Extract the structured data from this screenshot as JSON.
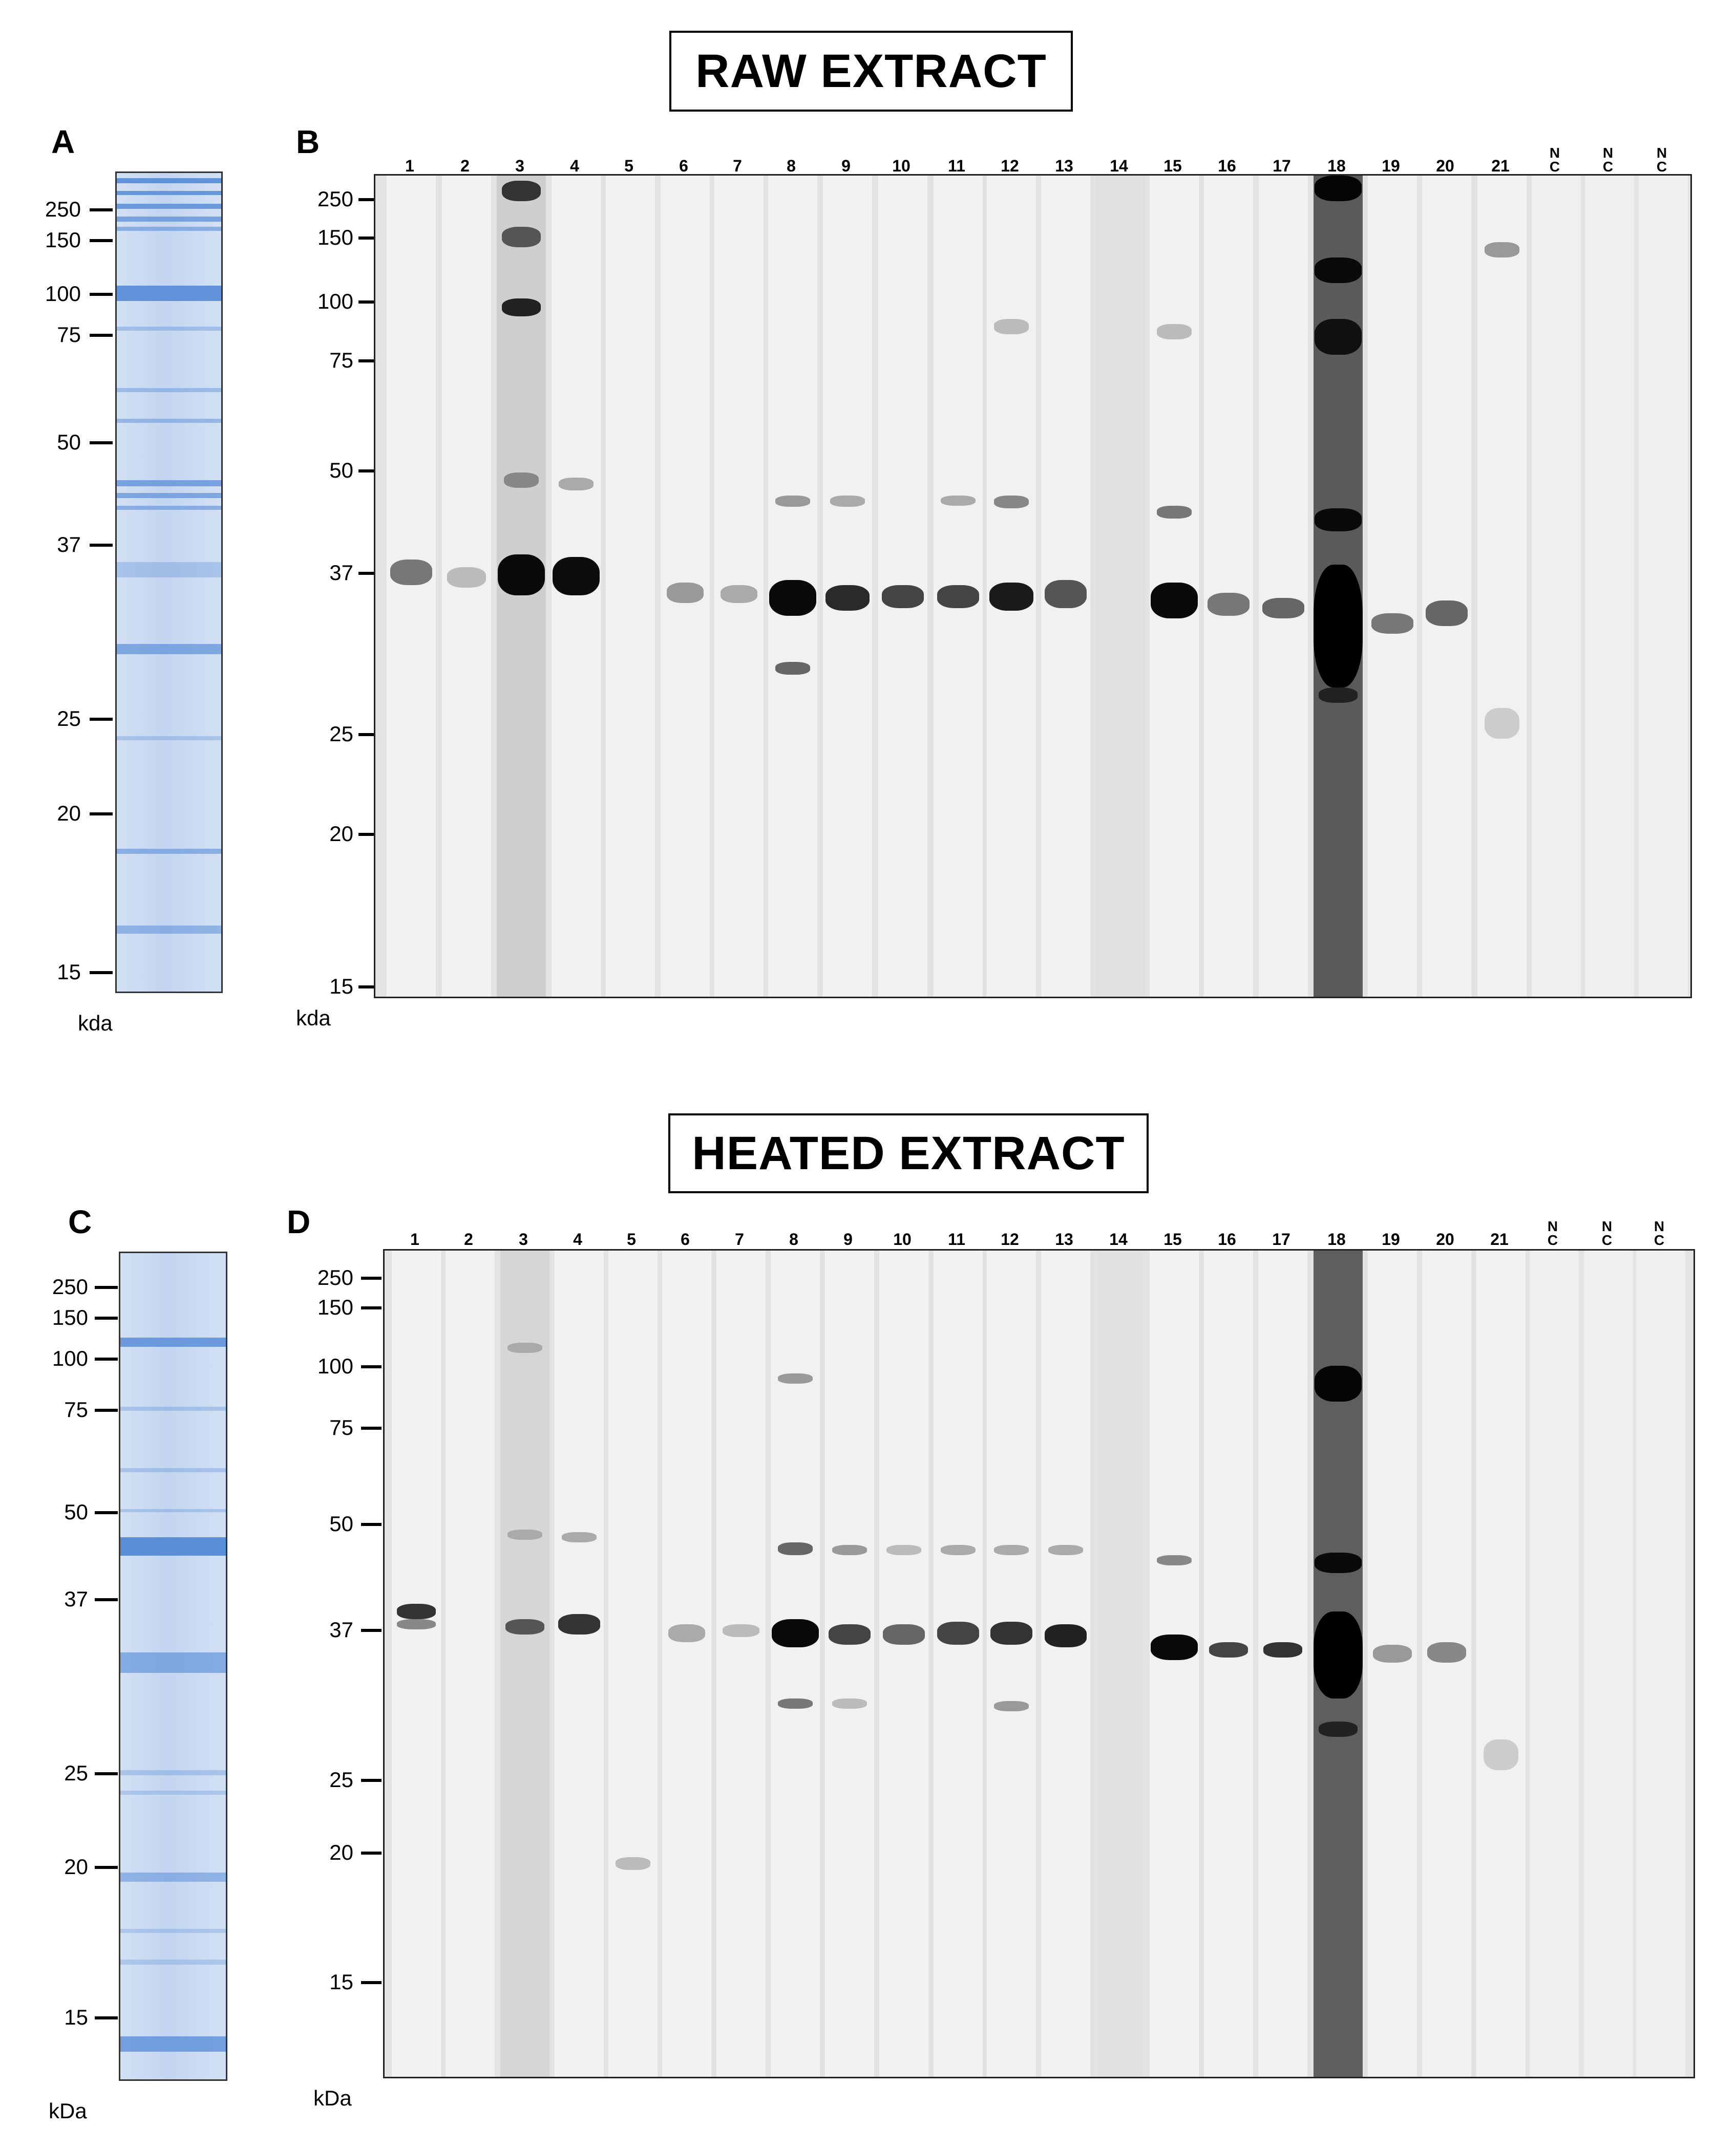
{
  "raw_title": "RAW EXTRACT",
  "heated_title": "HEATED EXTRACT",
  "panels": {
    "a": "A",
    "b": "B",
    "c": "C",
    "d": "D"
  },
  "units": {
    "a": "kda",
    "b": "kda",
    "c": "kDa",
    "d": "kDa"
  },
  "mw_markers": [
    "250",
    "150",
    "100",
    "75",
    "50",
    "37",
    "25",
    "20",
    "15"
  ],
  "gel_a_markers": [
    "250",
    "150",
    "100",
    "75",
    "50",
    "37",
    "25",
    "20",
    "15"
  ],
  "lanes": [
    "1",
    "2",
    "3",
    "4",
    "5",
    "6",
    "7",
    "8",
    "9",
    "10",
    "11",
    "12",
    "13",
    "14",
    "15",
    "16",
    "17",
    "18",
    "19",
    "20",
    "21"
  ],
  "nc_label": [
    "N",
    "C"
  ],
  "colors": {
    "coomassie": "#5b8ed8",
    "gel_bg": "#d2e0f3",
    "blot_bg": "#e3e3e3",
    "band_dark": "#111111"
  }
}
